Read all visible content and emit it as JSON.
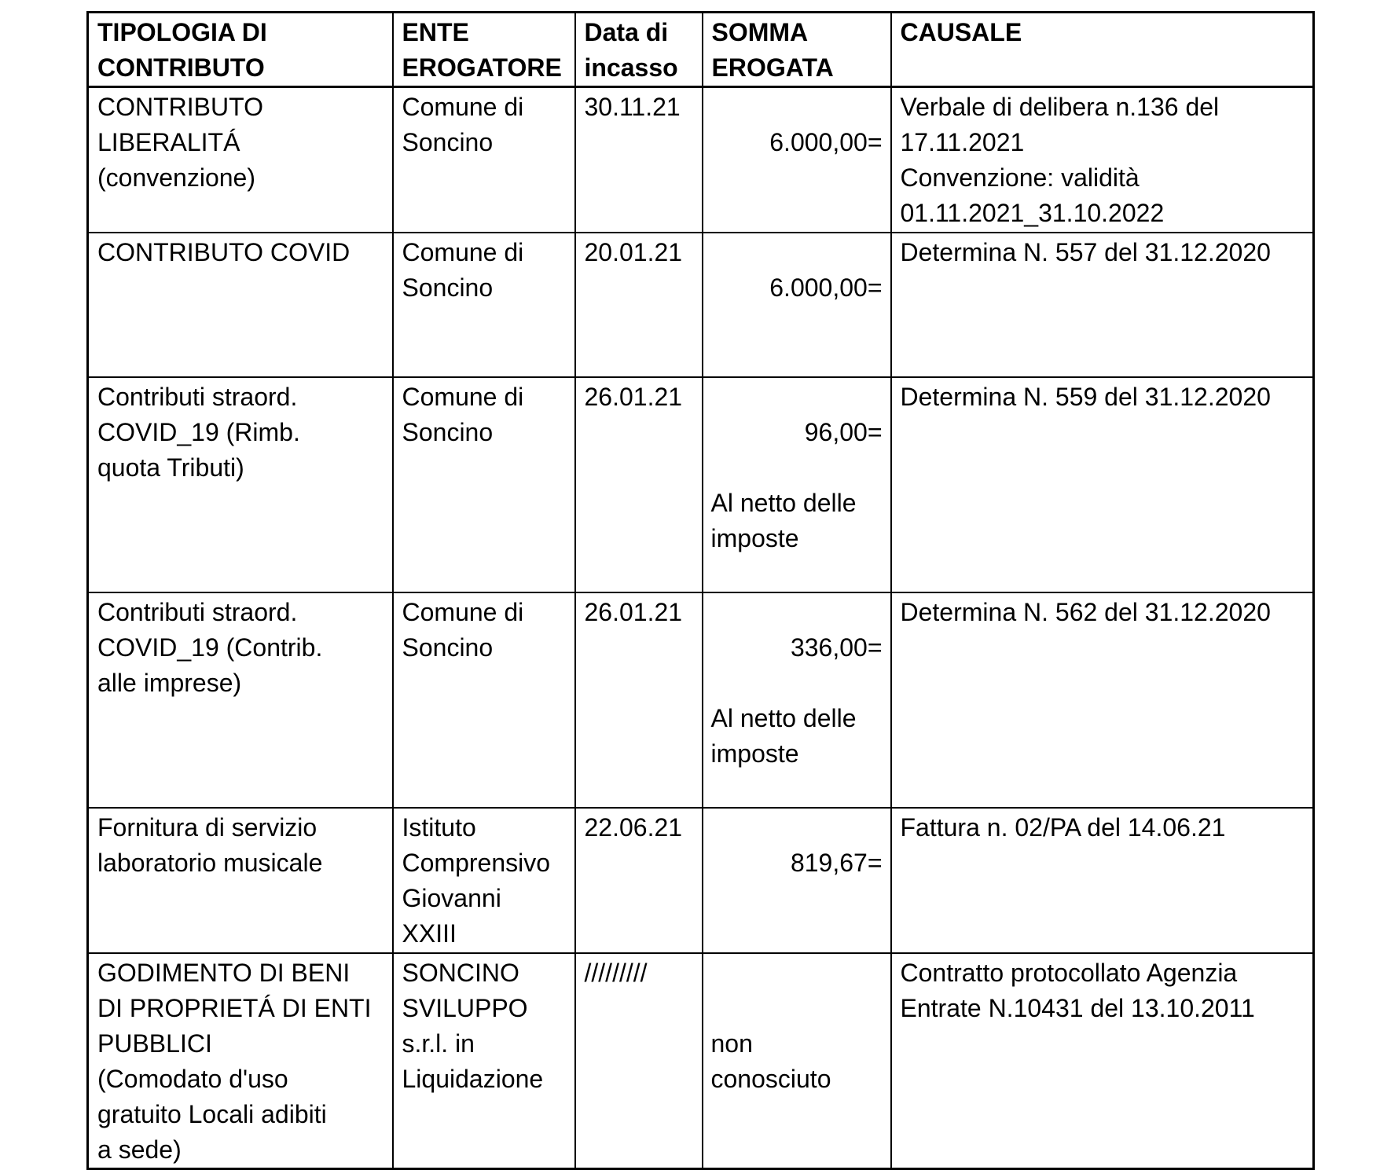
{
  "colors": {
    "border": "#000000",
    "text": "#000000",
    "background": "#ffffff"
  },
  "table": {
    "headers": {
      "tipologia": "TIPOLOGIA DI\nCONTRIBUTO",
      "ente": "ENTE\nEROGATORE",
      "data_incasso": "Data di\nincasso",
      "somma": "SOMMA\nEROGATA",
      "causale": "CAUSALE"
    },
    "rows": [
      {
        "tipologia": "CONTRIBUTO\nLIBERALITÁ\n(convenzione)",
        "ente": "Comune di\nSoncino",
        "data_incasso": "30.11.21",
        "somma_amount": "6.000,00=",
        "somma_note": "",
        "causale": "Verbale di delibera n.136 del\n17.11.2021\nConvenzione: validità\n01.11.2021_31.10.2022"
      },
      {
        "tipologia": "CONTRIBUTO COVID",
        "ente": "Comune di\nSoncino",
        "data_incasso": "20.01.21",
        "somma_amount": "6.000,00=",
        "somma_note": "",
        "causale": "Determina N. 557 del 31.12.2020"
      },
      {
        "tipologia": "Contributi straord.\nCOVID_19 (Rimb.\nquota Tributi)",
        "ente": "Comune di\nSoncino",
        "data_incasso": "26.01.21",
        "somma_amount": "96,00=",
        "somma_note": "Al netto delle\nimposte",
        "causale": "Determina N. 559 del 31.12.2020"
      },
      {
        "tipologia": "Contributi straord.\nCOVID_19 (Contrib.\nalle imprese)",
        "ente": "Comune di\nSoncino",
        "data_incasso": "26.01.21",
        "somma_amount": "336,00=",
        "somma_note": "Al netto delle\nimposte",
        "causale": "Determina N. 562 del 31.12.2020"
      },
      {
        "tipologia": "Fornitura di servizio\nlaboratorio musicale",
        "ente": "Istituto\nComprensivo\nGiovanni\nXXIII",
        "data_incasso": "22.06.21",
        "somma_amount": "819,67=",
        "somma_note": "",
        "causale": "Fattura n. 02/PA del 14.06.21"
      },
      {
        "tipologia": "GODIMENTO DI BENI\nDI PROPRIETÁ DI ENTI\nPUBBLICI\n(Comodato d'uso\ngratuito Locali adibiti\na sede)",
        "ente": "SONCINO\nSVILUPPO\ns.r.l. in\nLiquidazione",
        "data_incasso": "/////////",
        "somma_amount": "",
        "somma_note": "non\nconosciuto",
        "causale": "Contratto protocollato Agenzia\nEntrate N.10431 del 13.10.2011"
      }
    ]
  }
}
